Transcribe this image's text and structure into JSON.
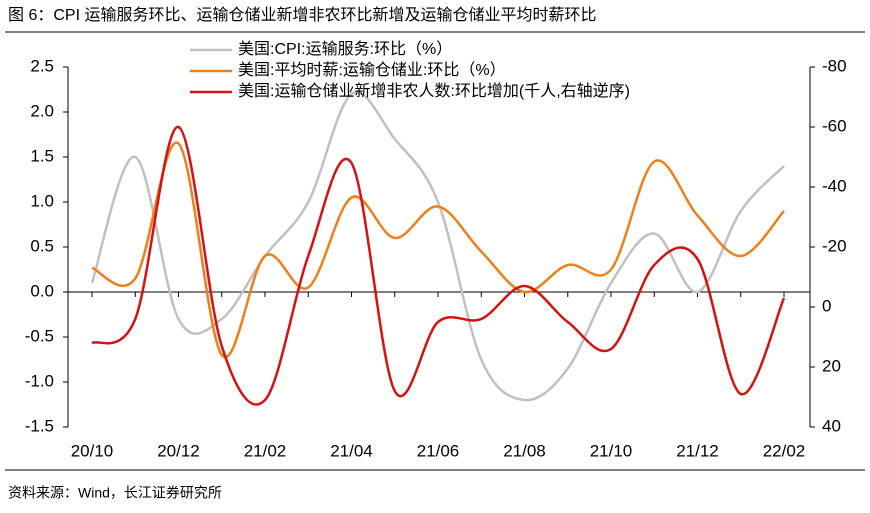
{
  "chart_data": {
    "type": "line",
    "title": "图 6：CPI 运输服务环比、运输仓储业新增非农环比新增及运输仓储业平均时薪环比",
    "source": "资料来源：Wind，长江证券研究所",
    "categories": [
      "20/10",
      null,
      "20/12",
      null,
      "21/02",
      null,
      "21/04",
      null,
      "21/06",
      null,
      "21/08",
      null,
      "21/10",
      null,
      "21/12",
      null,
      "22/02"
    ],
    "series": [
      {
        "name": "美国:CPI:运输服务:环比（%）",
        "color": "#c0c0c0",
        "values": [
          0.1,
          1.5,
          -0.3,
          -0.3,
          0.4,
          1.0,
          2.2,
          1.7,
          1.0,
          -0.75,
          -1.2,
          -0.85,
          0.1,
          0.65,
          0.0,
          0.9,
          1.4
        ]
      },
      {
        "name": "美国:平均时薪:运输仓储业:环比（%）",
        "color": "#f07f1a",
        "values": [
          0.27,
          0.15,
          1.65,
          -0.7,
          0.4,
          0.05,
          1.05,
          0.6,
          0.95,
          0.45,
          0.0,
          0.3,
          0.25,
          1.45,
          0.85,
          0.4,
          0.9
        ]
      },
      {
        "name": "美国:运输仓储业新增非农人数:环比增加(千人,右轴逆序)",
        "color": "#d81010",
        "axis": "y2",
        "values": [
          12,
          4,
          -60,
          13,
          31,
          -17,
          -48,
          28,
          5,
          4,
          -7,
          5,
          14,
          -14,
          -16,
          29,
          -3
        ]
      }
    ],
    "ylim": [
      -1.5,
      2.5
    ],
    "yticks": [
      {
        "value": -1.5,
        "label": "-1.5"
      },
      {
        "value": -1,
        "label": "-1.0"
      },
      -0.5,
      {
        "value": 0,
        "label": "0.0"
      },
      0.5,
      {
        "value": 1,
        "label": "1.0"
      },
      1.5,
      {
        "value": 2,
        "label": "2.0"
      },
      2.5
    ],
    "y2lim": [
      40,
      -80
    ],
    "y2ticks": [
      -80,
      -60,
      -40,
      -20,
      0,
      20,
      40
    ],
    "y2_inverted": true,
    "legend": "top"
  }
}
